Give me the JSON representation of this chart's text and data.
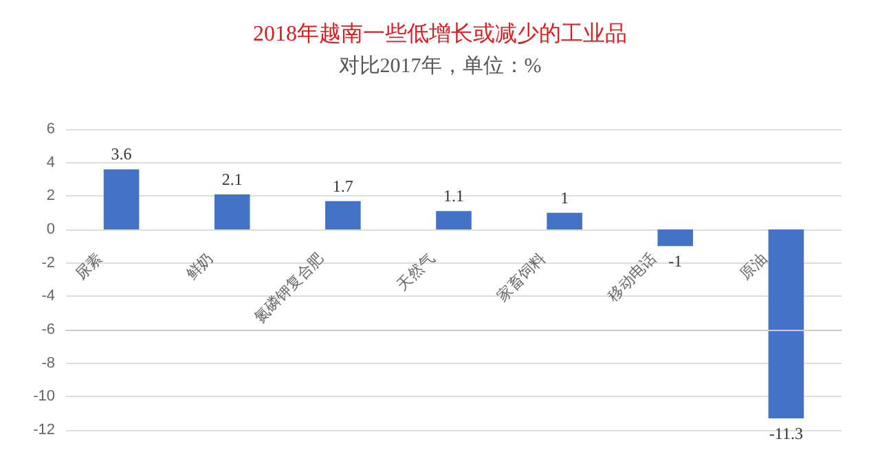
{
  "chart_data": {
    "type": "bar",
    "title": "2018年越南一些低增长或减少的工业品",
    "subtitle": "对比2017年，单位：%",
    "categories": [
      "尿素",
      "鲜奶",
      "氮磷钾复合肥",
      "天然气",
      "家畜饲料",
      "移动电话",
      "原油"
    ],
    "values": [
      3.6,
      2.1,
      1.7,
      1.1,
      1,
      -1,
      -11.3
    ],
    "color": "#4472c4",
    "ylim": [
      -12,
      6
    ],
    "yticks": [
      -12,
      -10,
      -8,
      -6,
      -4,
      -2,
      0,
      2,
      4,
      6
    ],
    "grid": "y",
    "data_labels": true
  }
}
